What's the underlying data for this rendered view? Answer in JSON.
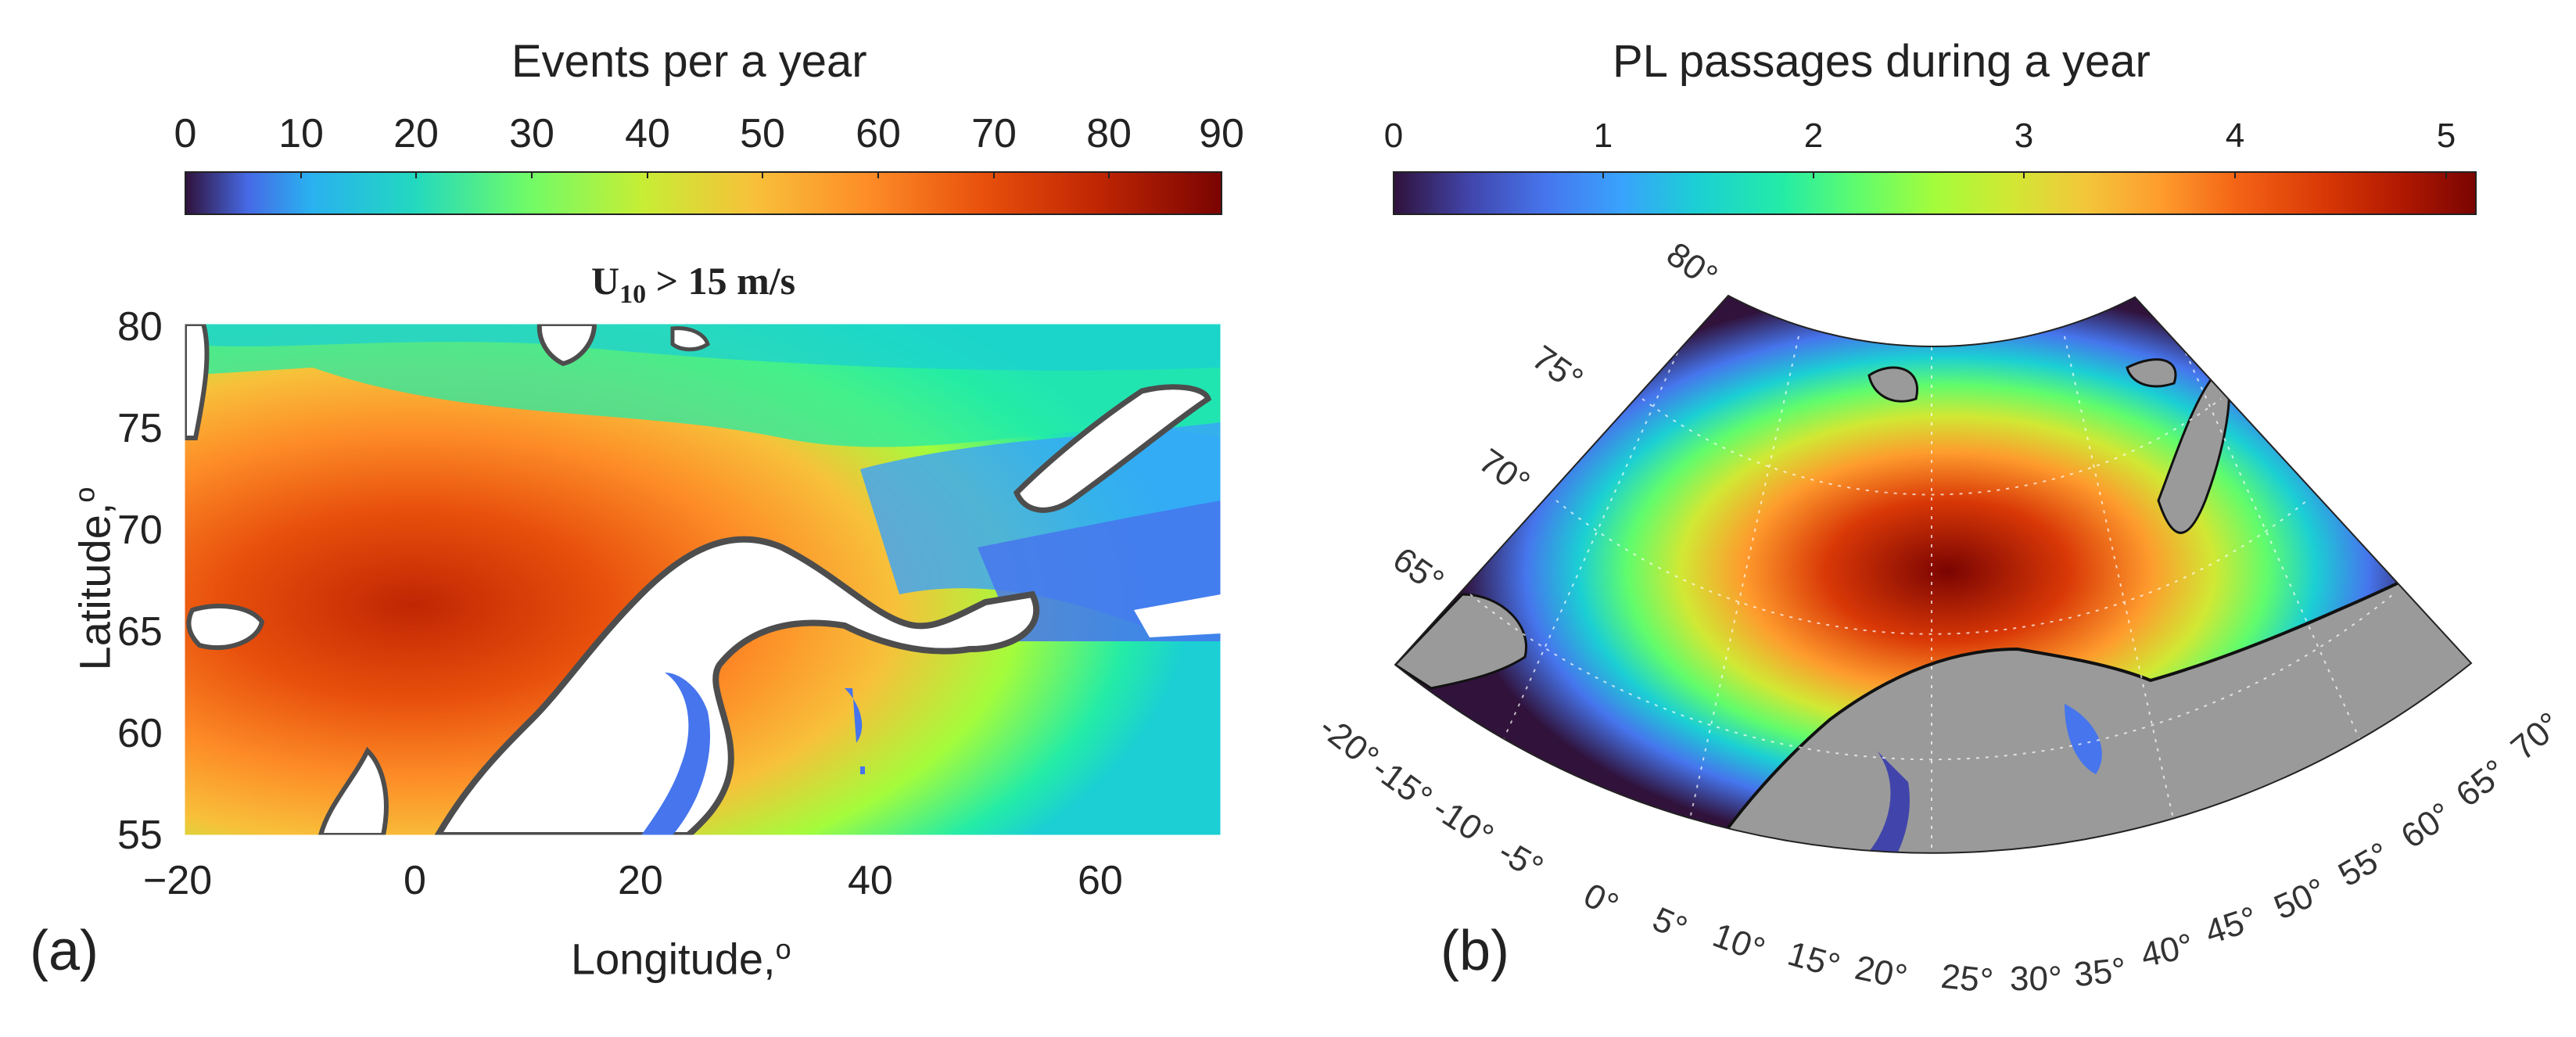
{
  "panel_a": {
    "label": "(a)",
    "colorbar": {
      "title": "Events per a year",
      "min": 0,
      "max": 90,
      "ticks": [
        "0",
        "10",
        "20",
        "30",
        "40",
        "50",
        "60",
        "70",
        "80",
        "90"
      ],
      "colormap": "turbo"
    },
    "map_title_main": "U",
    "map_title_sub": "10",
    "map_title_rest": " > 15 m/s",
    "x_axis": {
      "label": "Longitude,",
      "label_sup": "o",
      "ticks": [
        "−20",
        "0",
        "20",
        "40",
        "60"
      ],
      "range": [
        -20,
        70
      ]
    },
    "y_axis": {
      "label": "Latitude,",
      "label_sup": "o",
      "ticks": [
        "80",
        "75",
        "70",
        "65",
        "60",
        "55"
      ],
      "range": [
        55,
        80
      ]
    },
    "land_color": "#ffffff",
    "coast_color": "#4d4d4d"
  },
  "panel_b": {
    "label": "(b)",
    "colorbar": {
      "title": "PL passages during a year",
      "min": 0,
      "max": 5.1,
      "ticks": [
        "0",
        "1",
        "2",
        "3",
        "4",
        "5"
      ],
      "colormap": "turbo"
    },
    "lat_labels": [
      "80°",
      "75°",
      "70°",
      "65°"
    ],
    "lon_labels": [
      "-20°",
      "-15°",
      "-10°",
      "-5°",
      "0°",
      "5°",
      "10°",
      "15°",
      "20°",
      "25°",
      "30°",
      "35°",
      "40°",
      "45°",
      "50°",
      "55°",
      "60°",
      "65°",
      "70°"
    ],
    "land_color": "#9a9a9a",
    "background_color": "#30123b",
    "projection": "polar sector"
  }
}
